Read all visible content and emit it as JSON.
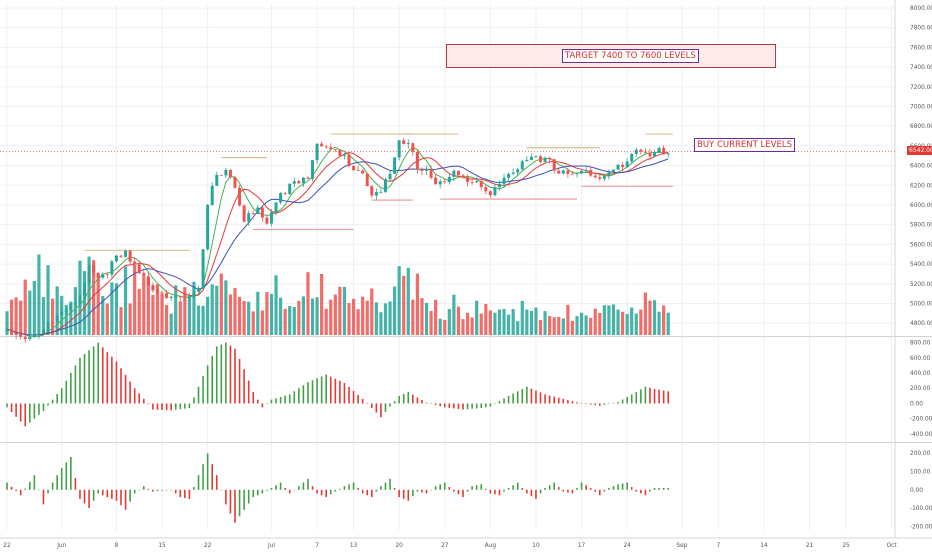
{
  "chart_data": {
    "type": "candlestick",
    "price_axis": {
      "ticks": [
        "8000.00",
        "7800.00",
        "7600.00",
        "7400.00",
        "7200.00",
        "7000.00",
        "6800.00",
        "6600.00",
        "6400.00",
        "6200.00",
        "6000.00",
        "5800.00",
        "5600.00",
        "5400.00",
        "5200.00",
        "5000.00",
        "4800.00"
      ],
      "range": [
        4680,
        8040
      ],
      "current_price_label": "6542.00",
      "current_price": 6542
    },
    "oscillator1_axis": {
      "ticks": [
        "800.00",
        "600.00",
        "400.00",
        "200.00",
        "0.00",
        "-200.00",
        "-400.00"
      ],
      "range": [
        -480,
        860
      ]
    },
    "oscillator2_axis": {
      "ticks": [
        "200.00",
        "100.00",
        "0.00",
        "-100.00",
        "-200.00"
      ],
      "range": [
        -220,
        245
      ]
    },
    "time_axis": {
      "ticks": [
        {
          "label": "22",
          "idx": 0
        },
        {
          "label": "Jun",
          "idx": 12
        },
        {
          "label": "8",
          "idx": 24
        },
        {
          "label": "15",
          "idx": 34
        },
        {
          "label": "22",
          "idx": 44
        },
        {
          "label": "Jul",
          "idx": 58
        },
        {
          "label": "7",
          "idx": 68
        },
        {
          "label": "13",
          "idx": 76
        },
        {
          "label": "20",
          "idx": 86
        },
        {
          "label": "27",
          "idx": 96
        },
        {
          "label": "Aug",
          "idx": 106
        },
        {
          "label": "10",
          "idx": 116
        },
        {
          "label": "17",
          "idx": 126
        },
        {
          "label": "24",
          "idx": 136
        },
        {
          "label": "Sep",
          "idx": 148
        },
        {
          "label": "7",
          "idx": 156
        },
        {
          "label": "14",
          "idx": 166
        },
        {
          "label": "21",
          "idx": 176
        },
        {
          "label": "25",
          "idx": 184
        },
        {
          "label": "Oct",
          "idx": 194
        }
      ],
      "max_index": 200
    },
    "price_keypoints": [
      [
        0,
        4760
      ],
      [
        5,
        4700
      ],
      [
        10,
        4840
      ],
      [
        15,
        5010
      ],
      [
        18,
        5420
      ],
      [
        20,
        5300
      ],
      [
        24,
        5460
      ],
      [
        26,
        5520
      ],
      [
        28,
        5370
      ],
      [
        32,
        5200
      ],
      [
        36,
        5120
      ],
      [
        40,
        5050
      ],
      [
        42,
        5150
      ],
      [
        44,
        6000
      ],
      [
        46,
        6350
      ],
      [
        48,
        6420
      ],
      [
        50,
        6210
      ],
      [
        52,
        5900
      ],
      [
        55,
        5950
      ],
      [
        57,
        5820
      ],
      [
        60,
        6120
      ],
      [
        62,
        6250
      ],
      [
        64,
        6300
      ],
      [
        66,
        6350
      ],
      [
        68,
        6620
      ],
      [
        70,
        6580
      ],
      [
        72,
        6560
      ],
      [
        74,
        6500
      ],
      [
        76,
        6430
      ],
      [
        78,
        6350
      ],
      [
        80,
        6180
      ],
      [
        82,
        6200
      ],
      [
        84,
        6300
      ],
      [
        86,
        6650
      ],
      [
        88,
        6630
      ],
      [
        90,
        6440
      ],
      [
        92,
        6400
      ],
      [
        94,
        6260
      ],
      [
        96,
        6300
      ],
      [
        98,
        6350
      ],
      [
        100,
        6280
      ],
      [
        102,
        6240
      ],
      [
        104,
        6200
      ],
      [
        106,
        6150
      ],
      [
        108,
        6300
      ],
      [
        110,
        6350
      ],
      [
        112,
        6420
      ],
      [
        114,
        6450
      ],
      [
        116,
        6470
      ],
      [
        118,
        6460
      ],
      [
        120,
        6420
      ],
      [
        122,
        6380
      ],
      [
        124,
        6360
      ],
      [
        126,
        6390
      ],
      [
        128,
        6310
      ],
      [
        130,
        6290
      ],
      [
        132,
        6310
      ],
      [
        134,
        6420
      ],
      [
        136,
        6530
      ],
      [
        138,
        6620
      ],
      [
        140,
        6600
      ],
      [
        142,
        6560
      ],
      [
        144,
        6540
      ],
      [
        145,
        6542
      ]
    ],
    "volume_keypoints": [
      [
        0,
        30
      ],
      [
        5,
        70
      ],
      [
        8,
        55
      ],
      [
        12,
        35
      ],
      [
        16,
        75
      ],
      [
        18,
        60
      ],
      [
        20,
        45
      ],
      [
        24,
        40
      ],
      [
        28,
        55
      ],
      [
        32,
        40
      ],
      [
        36,
        35
      ],
      [
        40,
        45
      ],
      [
        44,
        50
      ],
      [
        46,
        60
      ],
      [
        50,
        40
      ],
      [
        54,
        35
      ],
      [
        58,
        40
      ],
      [
        62,
        45
      ],
      [
        66,
        55
      ],
      [
        70,
        45
      ],
      [
        74,
        35
      ],
      [
        78,
        35
      ],
      [
        82,
        30
      ],
      [
        86,
        50
      ],
      [
        88,
        70
      ],
      [
        90,
        45
      ],
      [
        94,
        25
      ],
      [
        98,
        30
      ],
      [
        102,
        25
      ],
      [
        106,
        25
      ],
      [
        110,
        20
      ],
      [
        114,
        25
      ],
      [
        118,
        22
      ],
      [
        122,
        20
      ],
      [
        126,
        25
      ],
      [
        130,
        20
      ],
      [
        134,
        25
      ],
      [
        138,
        30
      ],
      [
        140,
        55
      ],
      [
        142,
        30
      ],
      [
        145,
        20
      ]
    ],
    "osc1_keypoints": [
      [
        0,
        -50
      ],
      [
        4,
        -300
      ],
      [
        8,
        -100
      ],
      [
        12,
        200
      ],
      [
        16,
        600
      ],
      [
        20,
        800
      ],
      [
        24,
        550
      ],
      [
        28,
        200
      ],
      [
        32,
        -80
      ],
      [
        36,
        -90
      ],
      [
        40,
        -60
      ],
      [
        44,
        500
      ],
      [
        46,
        750
      ],
      [
        48,
        800
      ],
      [
        50,
        720
      ],
      [
        52,
        450
      ],
      [
        54,
        150
      ],
      [
        56,
        -50
      ],
      [
        58,
        50
      ],
      [
        62,
        120
      ],
      [
        66,
        280
      ],
      [
        70,
        380
      ],
      [
        74,
        270
      ],
      [
        78,
        60
      ],
      [
        82,
        -180
      ],
      [
        86,
        100
      ],
      [
        88,
        150
      ],
      [
        92,
        10
      ],
      [
        96,
        -50
      ],
      [
        100,
        -80
      ],
      [
        104,
        -60
      ],
      [
        106,
        -40
      ],
      [
        110,
        100
      ],
      [
        114,
        220
      ],
      [
        118,
        120
      ],
      [
        122,
        60
      ],
      [
        126,
        0
      ],
      [
        130,
        -30
      ],
      [
        134,
        20
      ],
      [
        138,
        150
      ],
      [
        140,
        220
      ],
      [
        142,
        190
      ],
      [
        145,
        160
      ]
    ],
    "osc2_keypoints": [
      [
        0,
        40
      ],
      [
        3,
        -30
      ],
      [
        6,
        80
      ],
      [
        8,
        -80
      ],
      [
        10,
        40
      ],
      [
        12,
        120
      ],
      [
        14,
        180
      ],
      [
        16,
        -50
      ],
      [
        18,
        -100
      ],
      [
        20,
        -20
      ],
      [
        22,
        -40
      ],
      [
        24,
        -60
      ],
      [
        26,
        -110
      ],
      [
        28,
        -20
      ],
      [
        30,
        20
      ],
      [
        32,
        -10
      ],
      [
        36,
        0
      ],
      [
        38,
        -40
      ],
      [
        40,
        -50
      ],
      [
        42,
        80
      ],
      [
        44,
        200
      ],
      [
        46,
        80
      ],
      [
        48,
        -80
      ],
      [
        50,
        -180
      ],
      [
        52,
        -110
      ],
      [
        54,
        -40
      ],
      [
        56,
        -20
      ],
      [
        58,
        10
      ],
      [
        60,
        40
      ],
      [
        62,
        -20
      ],
      [
        64,
        20
      ],
      [
        66,
        60
      ],
      [
        68,
        -20
      ],
      [
        70,
        -40
      ],
      [
        72,
        -10
      ],
      [
        74,
        20
      ],
      [
        76,
        40
      ],
      [
        78,
        -20
      ],
      [
        80,
        -40
      ],
      [
        82,
        20
      ],
      [
        84,
        60
      ],
      [
        86,
        -40
      ],
      [
        88,
        -60
      ],
      [
        90,
        -10
      ],
      [
        92,
        -20
      ],
      [
        94,
        20
      ],
      [
        96,
        40
      ],
      [
        98,
        -10
      ],
      [
        100,
        -40
      ],
      [
        102,
        20
      ],
      [
        104,
        30
      ],
      [
        106,
        -20
      ],
      [
        108,
        -30
      ],
      [
        110,
        10
      ],
      [
        112,
        40
      ],
      [
        114,
        -20
      ],
      [
        116,
        -50
      ],
      [
        118,
        10
      ],
      [
        120,
        40
      ],
      [
        122,
        -10
      ],
      [
        124,
        -20
      ],
      [
        126,
        40
      ],
      [
        128,
        10
      ],
      [
        130,
        -30
      ],
      [
        132,
        10
      ],
      [
        134,
        30
      ],
      [
        136,
        40
      ],
      [
        138,
        -10
      ],
      [
        140,
        -30
      ],
      [
        142,
        10
      ],
      [
        145,
        10
      ]
    ],
    "annotations": {
      "target_label": "TARGET 7400 TO 7600 LEVELS",
      "buy_label": "BUY CURRENT LEVELS"
    },
    "colors": {
      "up": "#26a69a",
      "down": "#ef5350",
      "green_line": "#4caf50",
      "red_line": "#e53935",
      "blue_line": "#3f51b5",
      "grid": "#eef0f4",
      "axis_text": "#555555",
      "osc_up": "#43a047",
      "osc_down": "#e53935"
    }
  }
}
